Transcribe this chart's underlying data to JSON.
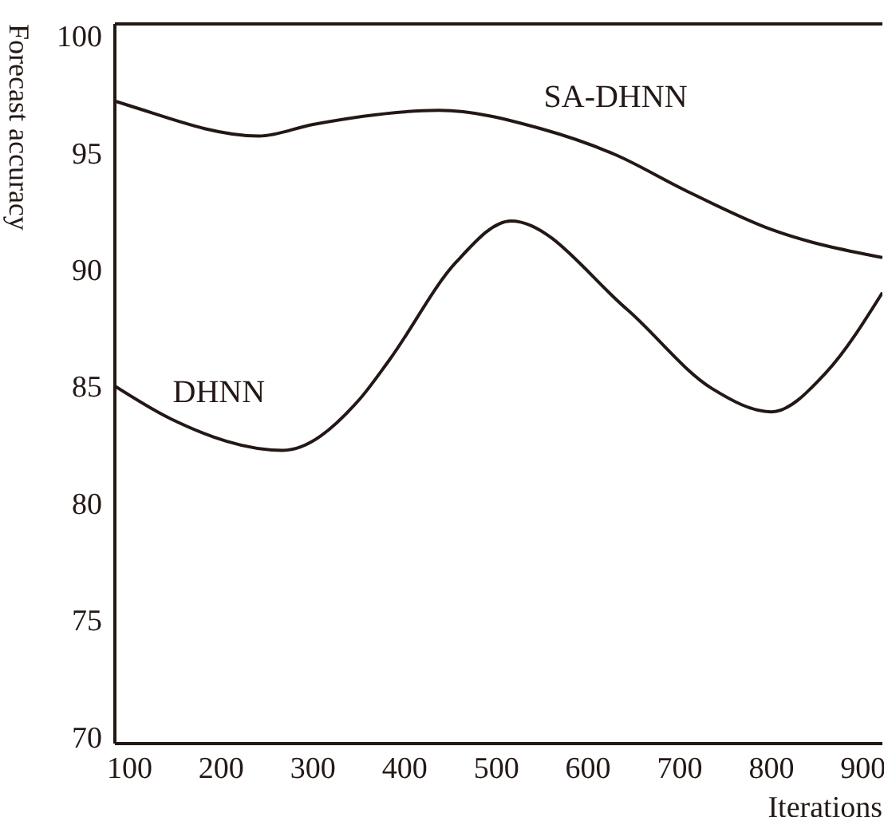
{
  "chart_data": {
    "type": "line",
    "xlabel": "Iterations",
    "ylabel": "Forecast accuracy",
    "xlim": [
      84,
      921
    ],
    "xticks": [
      100,
      200,
      300,
      400,
      500,
      600,
      700,
      800,
      900
    ],
    "ylim": [
      69.7,
      100.5
    ],
    "yticks": [
      70,
      75,
      80,
      85,
      90,
      95,
      100
    ],
    "marker": "none",
    "line_style": "solid",
    "series": [
      {
        "name": "SA-DHNN",
        "color": "#231815",
        "x": [
          84,
          100,
          241,
          300,
          437,
          550,
          630,
          705,
          800,
          921
        ],
        "values": [
          97.2,
          97.0,
          95.7,
          96.2,
          96.8,
          96.0,
          94.9,
          93.4,
          91.7,
          90.5
        ]
      },
      {
        "name": "DHNN",
        "color": "#231815",
        "x": [
          84,
          145,
          267,
          350,
          383,
          456,
          516,
          642,
          735,
          800,
          860,
          921
        ],
        "values": [
          85.0,
          83.6,
          82.25,
          84.4,
          86.1,
          90.3,
          92.07,
          88.3,
          84.9,
          83.9,
          85.6,
          89.0
        ]
      }
    ]
  }
}
